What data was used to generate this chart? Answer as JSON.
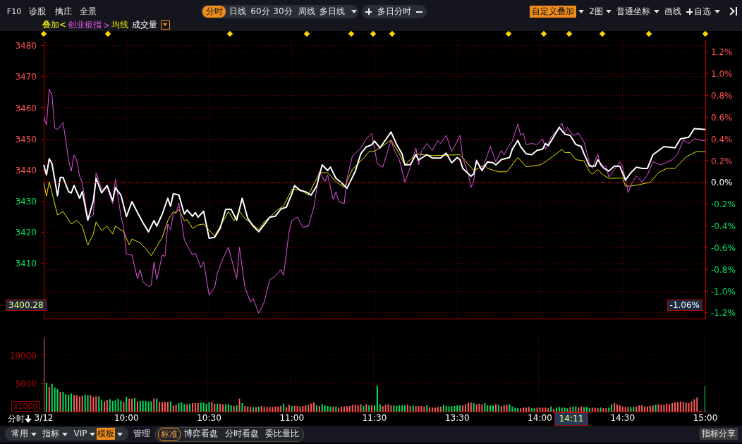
{
  "chart_data": [
    {
      "type": "other",
      "annotations": [
        "F10",
        "诊股",
        "擒庄",
        "全景",
        "分时",
        "日线",
        "60分",
        "30分",
        "周线",
        "多日线",
        "多日分时",
        "自定义叠加",
        "2图",
        "普通坐标",
        "画线",
        "自选"
      ]
    },
    {
      "type": "line",
      "legend_title": "叠加<",
      "legend": "top left",
      "annotations": [
        ">",
        "3400.28",
        "-1.06%",
        "成交量"
      ],
      "categories": [
        null,
        null,
        null,
        null,
        null,
        null,
        null,
        null,
        null,
        null,
        null,
        null,
        null,
        null,
        null,
        null,
        null,
        null,
        null,
        null,
        null,
        null,
        null,
        null,
        null,
        null,
        null,
        null,
        null,
        null,
        null,
        null,
        null,
        null,
        null,
        null,
        null,
        null,
        null,
        null,
        null,
        null,
        null,
        null,
        null,
        null,
        null,
        null,
        null,
        null,
        null,
        null,
        null,
        null,
        null,
        null,
        null,
        null,
        null,
        null,
        null,
        null,
        null,
        null,
        null,
        null,
        null,
        null,
        null,
        null,
        null,
        null,
        null,
        null,
        null,
        null,
        null,
        null,
        null,
        null,
        null,
        null,
        null,
        null,
        null,
        null,
        null,
        null,
        null,
        null,
        null,
        null,
        null,
        null,
        null,
        null,
        null,
        null,
        null,
        null,
        null,
        null,
        null,
        null,
        null,
        null,
        null,
        null,
        null,
        null,
        null,
        null,
        null,
        null,
        null,
        null,
        null,
        null,
        null,
        null,
        null,
        null,
        null,
        null,
        null,
        null,
        null,
        null,
        null,
        null,
        null,
        null,
        null,
        null,
        null,
        null,
        null,
        null,
        null,
        null,
        null,
        null,
        null,
        null,
        null,
        null,
        null,
        null,
        null,
        null,
        null,
        null,
        null,
        null,
        null,
        null,
        null,
        null,
        null,
        null,
        null,
        null,
        null,
        null,
        null,
        null,
        null,
        null,
        null,
        null,
        null,
        null,
        null,
        null,
        null,
        null,
        null,
        null,
        null,
        null,
        null,
        null,
        null,
        null,
        null,
        null,
        null,
        null,
        null,
        null,
        null,
        null,
        null,
        null,
        null,
        null,
        null,
        null,
        null,
        null,
        null,
        null,
        null,
        null,
        null,
        null,
        null,
        null,
        null,
        null,
        null,
        null,
        null,
        null,
        null,
        null,
        null,
        null,
        null,
        null,
        null,
        null,
        null,
        null,
        null,
        null,
        null,
        null,
        null,
        null,
        null,
        null,
        null,
        null,
        null,
        null,
        null,
        null,
        null,
        null,
        null
      ],
      "ylim": [
        3392,
        3481.7
      ],
      "yticks": [
        3410,
        3420,
        3430,
        3440,
        3450,
        3460,
        3470,
        3480
      ],
      "y2lim": [
        -1.258,
        1.307
      ],
      "y2ticks": [
        {
          "value": -1.2,
          "label": "-1.2%"
        },
        {
          "value": -1.0,
          "label": "-1.0%"
        },
        {
          "value": -0.8,
          "label": "-0.8%"
        },
        {
          "value": -0.6,
          "label": "-0.6%"
        },
        {
          "value": -0.4,
          "label": "-0.4%"
        },
        {
          "value": -0.2,
          "label": "-0.2%"
        },
        {
          "value": 0,
          "label": "0.0%"
        },
        {
          "value": 0.2,
          "label": "0.2%"
        },
        {
          "value": 0.4,
          "label": "0.4%"
        },
        {
          "value": 0.6,
          "label": "0.6%"
        },
        {
          "value": 0.8,
          "label": "0.8%"
        },
        {
          "value": 1.0,
          "label": "1.0%"
        },
        {
          "value": 1.2,
          "label": "1.2%"
        }
      ],
      "tick_labels": "y",
      "grid": true,
      "ref_lines": [
        {
          "axis": "y2",
          "value": 0,
          "color": "#c00000",
          "line_style": "dashed"
        }
      ],
      "series": [
        {
          "color": "#ffffff",
          "values": [
            3441.6,
            3438.4,
            3443.6,
            3442,
            null,
            3431.7,
            3437.6,
            3437.6,
            null,
            3433,
            3432.6,
            3435,
            null,
            3430.9,
            3433,
            null,
            3423.8,
            null,
            3430.1,
            3437.3,
            null,
            3432.6,
            null,
            3435,
            null,
            3430.1,
            3434.3,
            null,
            3431.9,
            null,
            3425,
            null,
            3429.8,
            null,
            3426.3,
            null,
            3423,
            null,
            3420.1,
            null,
            3423.7,
            3421.9,
            null,
            3425.8,
            null,
            3430.9,
            3428.3,
            3432.3,
            null,
            3432,
            null,
            3425.8,
            3427.1,
            null,
            3425.1,
            3426.3,
            3424.8,
            null,
            3426.7,
            null,
            3418,
            null,
            3418.3,
            null,
            3421.2,
            null,
            3427.3,
            null,
            3427.3,
            null,
            3423.8,
            null,
            3430.9,
            null,
            3424.4,
            null,
            3421.9,
            null,
            3420.1,
            null,
            3422.4,
            null,
            3424.8,
            null,
            3425.1,
            null,
            3427.4,
            null,
            3428,
            null,
            3432.3,
            3435,
            null,
            3433.4,
            null,
            3433,
            null,
            3431.9,
            null,
            3434.8,
            null,
            3441.6,
            null,
            3439.8,
            3440.9,
            null,
            3437.3,
            null,
            3435.9,
            null,
            3434.1,
            null,
            null,
            3439.5,
            null,
            3445.2,
            null,
            3447.4,
            null,
            3448.1,
            3449.3,
            null,
            3447.1,
            null,
            null,
            null,
            3452.2,
            null,
            3448.2,
            null,
            3445.2,
            3441.6,
            null,
            3441.7,
            null,
            3444.9,
            3443.2,
            null,
            null,
            3444.9,
            null,
            3443.8,
            null,
            null,
            3443.8,
            null,
            3445.4,
            null,
            3442.3,
            null,
            3444,
            3443.3,
            3440.5,
            null,
            null,
            3438,
            3438.7,
            3442.9,
            null,
            3439.8,
            null,
            3442.6,
            null,
            3442.3,
            3441.6,
            null,
            3443.3,
            null,
            null,
            3444,
            3446.7,
            null,
            3449.5,
            3447.5,
            null,
            3445.2,
            null,
            3444.9,
            null,
            3446.3,
            null,
            3446.7,
            3448.5,
            3447.8,
            null,
            3450.7,
            null,
            3453.7,
            null,
            3451.5,
            null,
            3451.1,
            null,
            3448.2,
            null,
            3447.5,
            3445.2,
            null,
            3441.2,
            null,
            3441.2,
            3443.3,
            null,
            3440.7,
            null,
            3439.6,
            null,
            3441.2,
            null,
            3441.2,
            null,
            3436.7,
            null,
            3439.1,
            null,
            3440.9,
            null,
            3440.5,
            null,
            3440.5,
            null,
            3444.9,
            null,
            null,
            null,
            3447.5,
            null,
            null,
            null,
            3447.1,
            null,
            3450,
            null,
            null,
            3450.5,
            null,
            3453.3,
            null,
            null,
            null,
            3453
          ]
        },
        {
          "name": "创业板指",
          "color": "#e055e0",
          "values": [
            3457,
            3454.5,
            3466,
            3463.9,
            3453.5,
            3453,
            null,
            3455.3,
            3449.5,
            3443,
            3439.6,
            3444.8,
            3443,
            3438,
            3435.9,
            null,
            3424.4,
            null,
            3425.5,
            3439.1,
            null,
            3433.7,
            null,
            3434.4,
            null,
            3429.1,
            3437,
            null,
            3425.1,
            3421.5,
            3412.9,
            null,
            3412.6,
            null,
            3405,
            3407.9,
            3404,
            null,
            3402.5,
            3402.9,
            3410.4,
            3404.7,
            null,
            3412.6,
            3412.2,
            3422.6,
            3420.8,
            3425.8,
            3426.2,
            3429.4,
            null,
            3417.6,
            3415.8,
            null,
            3412.6,
            3413.3,
            null,
            3408.6,
            3410.4,
            null,
            3399.7,
            null,
            3402.2,
            3406.8,
            null,
            3411.5,
            null,
            3415.1,
            null,
            null,
            3405,
            3415.1,
            null,
            3402.2,
            null,
            3397.5,
            3398.6,
            null,
            3393.9,
            null,
            3397.5,
            null,
            3404.7,
            null,
            3405.8,
            null,
            3407.9,
            3406.1,
            null,
            3420.1,
            3423.7,
            null,
            3424.8,
            null,
            3421.5,
            null,
            3421.9,
            null,
            3428,
            null,
            3439.5,
            null,
            3436.2,
            3438.4,
            null,
            3430.5,
            3433,
            3429.8,
            null,
            3429.1,
            3437.3,
            null,
            3444.5,
            null,
            null,
            3447,
            null,
            3449.9,
            null,
            3451.7,
            null,
            3442,
            null,
            3440.9,
            null,
            null,
            3449.6,
            3446.7,
            null,
            3443.3,
            null,
            3436.1,
            null,
            3440.9,
            null,
            3447.1,
            3441.6,
            3446,
            null,
            3448.5,
            null,
            3446.3,
            null,
            3449.5,
            3448.5,
            null,
            3451.1,
            null,
            3446,
            3447.5,
            null,
            3451.1,
            3443.8,
            null,
            3438.7,
            3434.4,
            3436.5,
            3443.3,
            null,
            3440.1,
            null,
            3444.9,
            3447.6,
            null,
            3442.6,
            null,
            3446.3,
            3444.9,
            null,
            3448.2,
            3449.3,
            null,
            3454.8,
            3451.1,
            3451.8,
            3448.2,
            null,
            3448.5,
            null,
            3448.2,
            null,
            3450,
            3446.7,
            null,
            3450.4,
            null,
            3452.6,
            null,
            3455.1,
            3451.8,
            3453.7,
            null,
            3451.1,
            null,
            3451.8,
            null,
            3448.9,
            null,
            3442.3,
            3440.5,
            null,
            3445.2,
            3441.2,
            null,
            3441.2,
            3437.7,
            null,
            3440.1,
            null,
            3442.6,
            3441.2,
            null,
            3432.7,
            3435.1,
            null,
            3438.1,
            null,
            3436.1,
            null,
            3438.4,
            null,
            3442.6,
            null,
            null,
            3441.6,
            null,
            null,
            null,
            3443.3,
            null,
            3445.2,
            null,
            3449.6,
            null,
            3448.5,
            null,
            3450,
            null,
            null,
            null,
            3449.3
          ]
        },
        {
          "name": "均线",
          "color": "#e6e600",
          "values": [
            3435.9,
            3431.6,
            3436.2,
            null,
            null,
            3425.5,
            null,
            3426.6,
            null,
            null,
            3422.6,
            null,
            3423.8,
            null,
            3421.9,
            null,
            3415.8,
            null,
            3419.4,
            3423.3,
            null,
            3420.5,
            null,
            3421.9,
            null,
            3419.4,
            3421.9,
            null,
            null,
            3420.1,
            null,
            3415.9,
            3417.8,
            null,
            null,
            3416.5,
            null,
            3414.7,
            null,
            3412.4,
            null,
            null,
            null,
            3418.3,
            null,
            3423.7,
            null,
            3426.6,
            3426.2,
            3427.3,
            null,
            3423.7,
            3424,
            null,
            3421.2,
            null,
            3422.3,
            null,
            3422.6,
            null,
            null,
            null,
            3418.7,
            null,
            null,
            null,
            null,
            3426.6,
            null,
            3423.7,
            null,
            3426.6,
            null,
            3424.4,
            null,
            3423,
            null,
            null,
            3420.8,
            null,
            3423.3,
            null,
            3424.8,
            null,
            null,
            3427.3,
            null,
            3428.4,
            null,
            null,
            3433.7,
            null,
            null,
            3433.7,
            null,
            null,
            3431.9,
            null,
            null,
            null,
            3439.1,
            null,
            null,
            3439.1,
            null,
            null,
            3436.2,
            null,
            null,
            3434.4,
            null,
            null,
            3440.2,
            null,
            null,
            null,
            3443.8,
            null,
            3445.9,
            null,
            3446,
            null,
            null,
            null,
            null,
            null,
            3449.6,
            null,
            null,
            3445.2,
            null,
            3441.6,
            null,
            null,
            null,
            3445.1,
            null,
            null,
            null,
            null,
            null,
            3444.6,
            null,
            null,
            null,
            null,
            null,
            null,
            null,
            null,
            null,
            3444.9,
            null,
            null,
            null,
            null,
            3439.8,
            null,
            null,
            null,
            3441.6,
            3440.5,
            null,
            null,
            null,
            3439.4,
            null,
            null,
            3439.4,
            null,
            null,
            null,
            3444,
            null,
            null,
            3441,
            null,
            null,
            null,
            null,
            3441.6,
            null,
            3442.6,
            null,
            null,
            3444.6,
            null,
            null,
            3446.6,
            3445.6,
            null,
            3445.6,
            null,
            3443.3,
            null,
            null,
            3442.9,
            null,
            3439.4,
            3438.7,
            null,
            3440.1,
            null,
            3438.4,
            null,
            3437.3,
            null,
            null,
            null,
            null,
            3437.4,
            3434.8,
            null,
            3434.8,
            null,
            3435.1,
            null,
            null,
            null,
            null,
            3436,
            null,
            null,
            3439.1,
            null,
            null,
            3440.5,
            null,
            null,
            3440.5,
            null,
            null,
            null,
            3444.2,
            null,
            null,
            null,
            3446,
            null,
            null,
            3445.8
          ]
        }
      ]
    },
    {
      "type": "bar",
      "ylabel": "x1000",
      "annotations": [
        "14:11"
      ],
      "categories": [
        "3/12",
        null,
        null,
        null,
        null,
        null,
        null,
        null,
        null,
        null,
        null,
        null,
        null,
        null,
        null,
        null,
        null,
        null,
        null,
        null,
        null,
        null,
        null,
        null,
        null,
        null,
        null,
        null,
        null,
        null,
        "10:00",
        null,
        null,
        null,
        null,
        null,
        null,
        null,
        null,
        null,
        null,
        null,
        null,
        null,
        null,
        null,
        null,
        null,
        null,
        null,
        null,
        null,
        null,
        null,
        null,
        null,
        null,
        null,
        null,
        null,
        "10:30",
        null,
        null,
        null,
        null,
        null,
        null,
        null,
        null,
        null,
        null,
        null,
        null,
        null,
        null,
        null,
        null,
        null,
        null,
        null,
        null,
        null,
        null,
        null,
        null,
        null,
        null,
        null,
        null,
        null,
        "11:00",
        null,
        null,
        null,
        null,
        null,
        null,
        null,
        null,
        null,
        null,
        null,
        null,
        null,
        null,
        null,
        null,
        null,
        null,
        null,
        null,
        null,
        null,
        null,
        null,
        null,
        null,
        null,
        null,
        null,
        "11:30",
        null,
        null,
        null,
        null,
        null,
        null,
        null,
        null,
        null,
        null,
        null,
        null,
        null,
        null,
        null,
        null,
        null,
        null,
        null,
        null,
        null,
        null,
        null,
        null,
        null,
        null,
        null,
        null,
        null,
        "13:30",
        null,
        null,
        null,
        null,
        null,
        null,
        null,
        null,
        null,
        null,
        null,
        null,
        null,
        null,
        null,
        null,
        null,
        null,
        null,
        null,
        null,
        null,
        null,
        null,
        null,
        null,
        null,
        null,
        null,
        "14:00",
        null,
        null,
        null,
        null,
        null,
        null,
        null,
        null,
        null,
        null,
        null,
        null,
        null,
        null,
        null,
        null,
        null,
        null,
        null,
        null,
        null,
        null,
        null,
        null,
        null,
        null,
        null,
        null,
        null,
        "14:30",
        null,
        null,
        null,
        null,
        null,
        null,
        null,
        null,
        null,
        null,
        null,
        null,
        null,
        null,
        null,
        null,
        null,
        null,
        null,
        null,
        null,
        null,
        null,
        null,
        null,
        null,
        null,
        null,
        null,
        "15:00"
      ],
      "ylim": [
        0,
        13100
      ],
      "yticks": [
        5000,
        10000
      ],
      "grid": true,
      "values": [
        13100,
        5100,
        4400,
        4900,
        4300,
        4000,
        3500,
        3500,
        3100,
        3000,
        3200,
        2900,
        2900,
        2700,
        2800,
        3000,
        2900,
        2900,
        2600,
        2700,
        2700,
        2100,
        1800,
        2000,
        2200,
        1900,
        2000,
        2300,
        1900,
        1700,
        2600,
        2300,
        2300,
        2400,
        1800,
        1900,
        1900,
        1900,
        1800,
        1800,
        2300,
        2300,
        1700,
        1700,
        1700,
        1700,
        1800,
        1100,
        1200,
        1500,
        1600,
        1300,
        1300,
        1400,
        1500,
        1500,
        1500,
        1600,
        1600,
        1400,
        1700,
        1700,
        1400,
        1400,
        1400,
        1300,
        1300,
        1300,
        1100,
        1000,
        1100,
        2300,
        1500,
        1000,
        900,
        800,
        800,
        800,
        900,
        1000,
        800,
        800,
        800,
        800,
        900,
        900,
        1000,
        1400,
        800,
        1200,
        1000,
        1000,
        1000,
        900,
        1000,
        1100,
        1200,
        1400,
        1600,
        1100,
        1000,
        1300,
        1100,
        1000,
        900,
        900,
        900,
        700,
        900,
        900,
        1000,
        1000,
        1200,
        1200,
        1100,
        1300,
        1000,
        1300,
        1100,
        1100,
        1100,
        4600,
        1300,
        1000,
        1200,
        1300,
        1100,
        1100,
        1000,
        1100,
        1100,
        1100,
        1200,
        1000,
        1100,
        1000,
        1000,
        1000,
        900,
        1100,
        800,
        700,
        700,
        800,
        900,
        1200,
        1000,
        900,
        1000,
        1000,
        1100,
        1100,
        1100,
        1300,
        1600,
        1600,
        1500,
        1300,
        1400,
        1300,
        1500,
        1100,
        1100,
        1100,
        1300,
        1200,
        1000,
        1100,
        1200,
        1300,
        900,
        700,
        600,
        600,
        700,
        700,
        800,
        600,
        600,
        700,
        700,
        700,
        700,
        600,
        900,
        500,
        700,
        800,
        700,
        700,
        600,
        800,
        900,
        900,
        700,
        900,
        800,
        800,
        600,
        700,
        700,
        600,
        700,
        600,
        600,
        700,
        1300,
        1500,
        1300,
        1100,
        900,
        800,
        800,
        800,
        800,
        900,
        1100,
        1100,
        900,
        900,
        1000,
        1100,
        1200,
        1300,
        1200,
        1200,
        1400,
        1300,
        1500,
        1700,
        1700,
        1800,
        1700,
        1600,
        1500,
        1800,
        2200,
        2500,
        100,
        null,
        4500
      ],
      "colors": [
        "#ff5c5c",
        "#00e060",
        "#ff5c5c",
        "#00e060",
        "#00e060",
        "#00e060",
        "#ff5c5c",
        "#00e060",
        "#00e060",
        "#00e060",
        "#00e060",
        "#ff5c5c",
        "#ff5c5c",
        "#ff5c5c",
        "#ff5c5c",
        "#00e060",
        "#00e060",
        "#ff5c5c",
        "#ff5c5c",
        "#ff5c5c",
        "#00e060",
        "#00e060",
        "#ff5c5c",
        "#ff5c5c",
        "#00e060",
        "#00e060",
        "#00e060",
        "#00e060",
        "#00e060",
        "#ff5c5c",
        "#00e060",
        "#ff5c5c",
        "#ff5c5c",
        "#00e060",
        "#ff5c5c",
        "#00e060",
        "#00e060",
        "#00e060",
        "#00e060",
        "#00e060",
        "#ff5c5c",
        "#00e060",
        "#ff5c5c",
        "#ff5c5c",
        "#ff5c5c",
        "#ff5c5c",
        "#00e060",
        "#ff5c5c",
        "#ff5c5c",
        "#00e060",
        "#00e060",
        "#00e060",
        "#ff5c5c",
        "#00e060",
        "#ff5c5c",
        "#ff5c5c",
        "#ff5c5c",
        "#00e060",
        "#00e060",
        "#00e060",
        "#00e060",
        "#ff5c5c",
        "#ff5c5c",
        "#00e060",
        "#ff5c5c",
        "#ff5c5c",
        "#00e060",
        "#00e060",
        "#00e060",
        "#ff5c5c",
        "#00e060",
        "#ff5c5c",
        "#00e060",
        "#ff5c5c",
        "#ff5c5c",
        "#ff5c5c",
        "#00e060",
        "#ff5c5c",
        "#00e060",
        "#ff5c5c",
        "#ff5c5c",
        "#ff5c5c",
        "#ff5c5c",
        "#ff5c5c",
        "#ff5c5c",
        "#ff5c5c",
        "#ff5c5c",
        "#00e060",
        "#ff5c5c",
        "#ff5c5c",
        "#00e060",
        "#ff5c5c",
        "#ff5c5c",
        "#ff5c5c",
        "#ff5c5c",
        "#ff5c5c",
        "#ff5c5c",
        "#ff5c5c",
        "#ff5c5c",
        "#00e060",
        "#ff5c5c",
        "#00e060",
        "#00e060",
        "#00e060",
        "#00e060",
        "#ff5c5c",
        "#00e060",
        "#ff5c5c",
        "#ff5c5c",
        "#ff5c5c",
        "#ff5c5c",
        "#ff5c5c",
        "#ff5c5c",
        "#ff5c5c",
        "#ff5c5c",
        "#ff5c5c",
        "#00e060",
        "#ff5c5c",
        "#00e060",
        "#ff5c5c",
        "#00e060",
        "#00e060",
        "#00e060",
        "#ff5c5c",
        "#ff5c5c",
        "#ff5c5c",
        "#ff5c5c",
        "#00e060",
        "#00e060",
        "#00e060",
        "#00e060",
        "#00e060",
        "#ff5c5c",
        "#ff5c5c",
        "#00e060",
        "#ff5c5c",
        "#ff5c5c",
        "#ff5c5c",
        "#ff5c5c",
        "#00e060",
        "#ff5c5c",
        "#ff5c5c",
        "#ff5c5c",
        "#ff5c5c",
        "#ff5c5c",
        "#00e060",
        "#00e060",
        "#00e060",
        "#00e060",
        "#00e060",
        "#00e060",
        "#00e060",
        "#ff5c5c",
        "#ff5c5c",
        "#ff5c5c",
        "#ff5c5c",
        "#00e060",
        "#ff5c5c",
        "#ff5c5c",
        "#ff5c5c",
        "#00e060",
        "#00e060",
        "#00e060",
        "#00e060",
        "#ff5c5c",
        "#00e060",
        "#ff5c5c",
        "#ff5c5c",
        "#ff5c5c",
        "#00e060",
        "#00e060",
        "#00e060",
        "#00e060",
        "#ff5c5c",
        "#ff5c5c",
        "#ff5c5c",
        "#ff5c5c",
        "#00e060",
        "#00e060",
        "#ff5c5c",
        "#ff5c5c",
        "#ff5c5c",
        "#ff5c5c",
        "#ff5c5c",
        "#00e060",
        "#ff5c5c",
        "#00e060",
        "#00e060",
        "#00e060",
        "#00e060",
        "#00e060",
        "#ff5c5c",
        "#00e060",
        "#00e060",
        "#ff5c5c",
        "#ff5c5c",
        "#00e060",
        "#00e060",
        "#00e060",
        "#ff5c5c",
        "#ff5c5c",
        "#ff5c5c",
        "#00e060",
        "#ff5c5c",
        "#ff5c5c",
        "#00e060",
        "#00e060",
        "#ff5c5c",
        "#ff5c5c",
        "#ff5c5c",
        "#ff5c5c",
        "#ff5c5c",
        "#ff5c5c",
        "#00e060",
        "#00e060",
        "#ff5c5c",
        "#ff5c5c",
        "#ff5c5c",
        "#ff5c5c",
        "#ff5c5c",
        "#ff5c5c",
        "#ff5c5c",
        "#00e060",
        "#ff5c5c",
        "#ff5c5c",
        "#ff5c5c",
        "#ff5c5c",
        "#ff5c5c",
        "#ff5c5c",
        "#ff5c5c",
        "#ff5c5c",
        "#ff5c5c",
        "#ff5c5c",
        "#ff5c5c",
        "#ff5c5c",
        "#ff5c5c",
        "#ff5c5c",
        "#ff5c5c",
        "#ff5c5c",
        "#ff5c5c",
        "#00e060"
      ]
    },
    {
      "type": "other",
      "annotations": [
        "分时",
        "常用",
        "指标",
        "VIP",
        "模板",
        "管理",
        "标准",
        "博弈看盘",
        "分时看盘",
        "委比量比",
        "指标分享"
      ]
    }
  ]
}
